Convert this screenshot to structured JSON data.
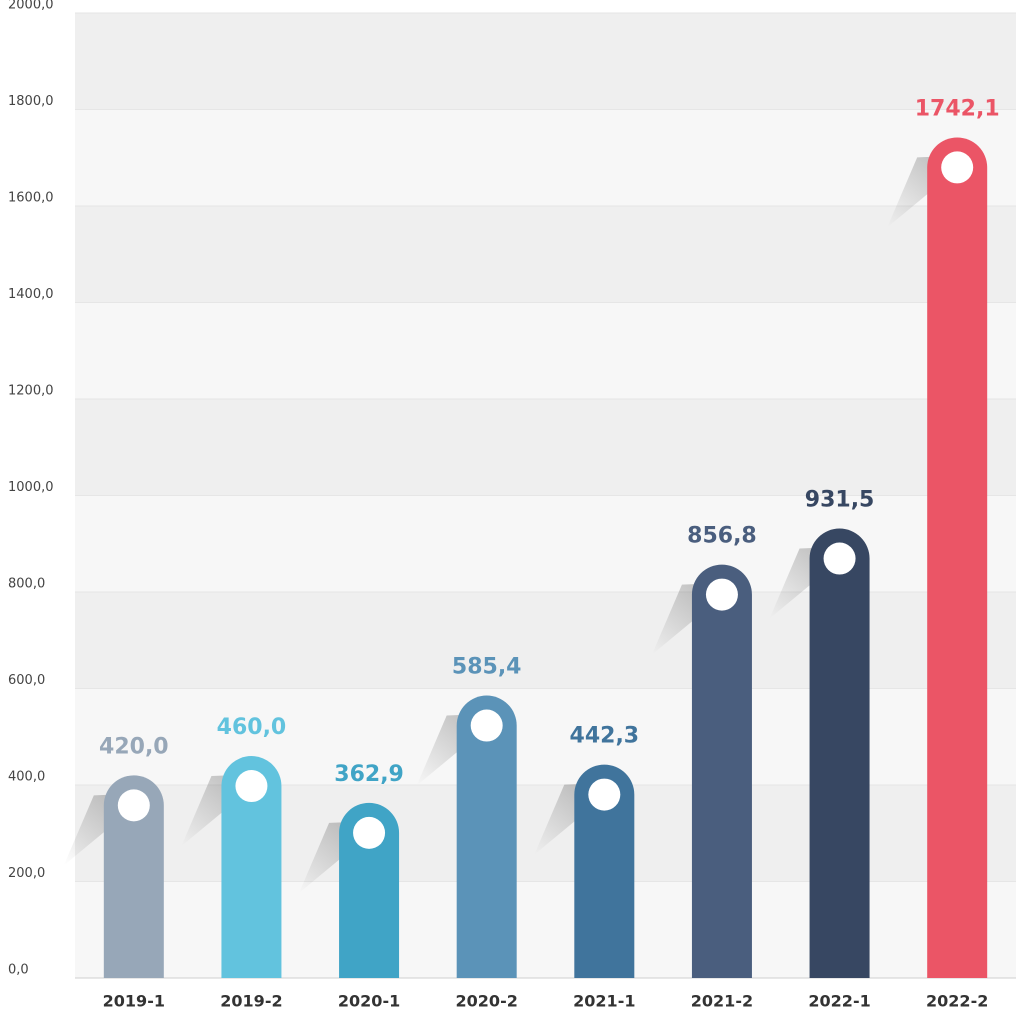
{
  "chart_data": {
    "type": "bar",
    "categories": [
      "2019-1",
      "2019-2",
      "2020-1",
      "2020-2",
      "2021-1",
      "2021-2",
      "2022-1",
      "2022-2"
    ],
    "values": [
      420.0,
      460.0,
      362.9,
      585.4,
      442.3,
      856.8,
      931.5,
      1742.1
    ],
    "value_labels": [
      "420,0",
      "460,0",
      "362,9",
      "585,4",
      "442,3",
      "856,8",
      "931,5",
      "1742,1"
    ],
    "colors": [
      "#97a7b8",
      "#62c3de",
      "#40a4c6",
      "#5b93b8",
      "#40749c",
      "#4a5e7e",
      "#374762",
      "#eb5566"
    ],
    "ylim": [
      0,
      2000
    ],
    "yticks": [
      {
        "value": 0,
        "label": "0,0"
      },
      {
        "value": 200,
        "label": "200,0"
      },
      {
        "value": 400,
        "label": "400,0"
      },
      {
        "value": 600,
        "label": "600,0"
      },
      {
        "value": 800,
        "label": "800,0"
      },
      {
        "value": 1000,
        "label": "1000,0"
      },
      {
        "value": 1200,
        "label": "1200,0"
      },
      {
        "value": 1400,
        "label": "1400,0"
      },
      {
        "value": 1600,
        "label": "1600,0"
      },
      {
        "value": 1800,
        "label": "1800,0"
      },
      {
        "value": 2000,
        "label": "2000,0"
      }
    ],
    "grid": true
  }
}
